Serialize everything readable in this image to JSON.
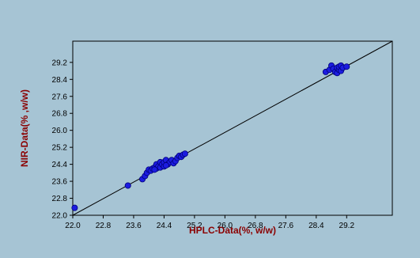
{
  "chart_data": {
    "type": "scatter",
    "title": "",
    "xlabel": "HPLC-Data(%, w/w)",
    "ylabel": "NIR-Data(% ,w/w)",
    "xlim": [
      22.0,
      30.4
    ],
    "ylim": [
      22.0,
      30.2
    ],
    "x_ticks": [
      "22.0",
      "22.8",
      "23.6",
      "24.4",
      "25.2",
      "26.0",
      "26.8",
      "27.6",
      "28.4",
      "29.2"
    ],
    "y_ticks": [
      "22.0",
      "22.8",
      "23.6",
      "24.4",
      "25.2",
      "26.0",
      "26.8",
      "27.6",
      "28.4",
      "29.2"
    ],
    "grid": false,
    "legend": "none",
    "reference_line": {
      "x": [
        22.0,
        30.4
      ],
      "y": [
        22.0,
        30.2
      ]
    },
    "colors": {
      "background": "#a6c4d4",
      "points": "#1c1ce0",
      "point_edge": "#00007a",
      "axis_title": "#8b0000",
      "line": "#000000"
    },
    "series": [
      {
        "points": [
          [
            22.05,
            22.35
          ],
          [
            23.45,
            23.4
          ],
          [
            23.83,
            23.7
          ],
          [
            23.9,
            23.85
          ],
          [
            23.95,
            24.0
          ],
          [
            24.0,
            24.15
          ],
          [
            24.05,
            24.1
          ],
          [
            24.1,
            24.2
          ],
          [
            24.15,
            24.25
          ],
          [
            24.2,
            24.2
          ],
          [
            24.2,
            24.4
          ],
          [
            24.25,
            24.3
          ],
          [
            24.3,
            24.5
          ],
          [
            24.3,
            24.25
          ],
          [
            24.35,
            24.4
          ],
          [
            24.4,
            24.3
          ],
          [
            24.4,
            24.5
          ],
          [
            24.45,
            24.6
          ],
          [
            24.5,
            24.4
          ],
          [
            24.55,
            24.5
          ],
          [
            24.6,
            24.6
          ],
          [
            24.65,
            24.45
          ],
          [
            24.7,
            24.55
          ],
          [
            24.75,
            24.7
          ],
          [
            24.8,
            24.8
          ],
          [
            24.85,
            24.75
          ],
          [
            24.9,
            24.85
          ],
          [
            24.95,
            24.9
          ],
          [
            24.45,
            24.35
          ],
          [
            24.15,
            24.15
          ],
          [
            28.65,
            28.75
          ],
          [
            28.75,
            28.85
          ],
          [
            28.8,
            29.05
          ],
          [
            28.85,
            28.9
          ],
          [
            28.9,
            28.75
          ],
          [
            28.95,
            28.7
          ],
          [
            28.95,
            28.95
          ],
          [
            29.0,
            28.85
          ],
          [
            29.0,
            29.0
          ],
          [
            29.05,
            28.8
          ],
          [
            29.05,
            29.05
          ],
          [
            29.1,
            28.95
          ],
          [
            29.2,
            29.0
          ]
        ]
      }
    ]
  }
}
